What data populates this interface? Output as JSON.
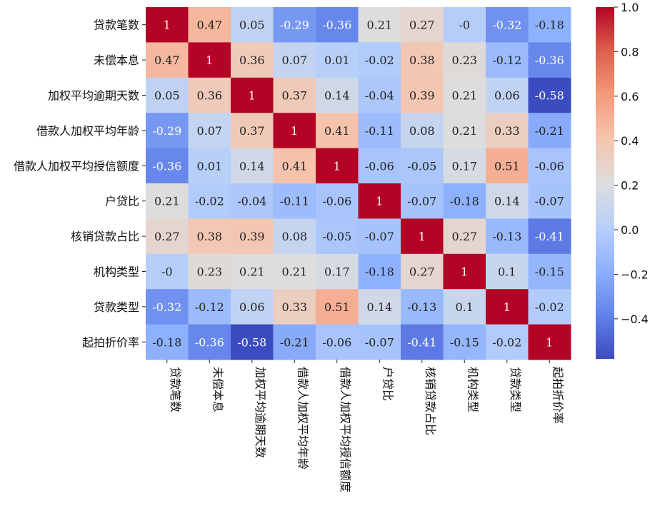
{
  "chart_data": {
    "type": "heatmap",
    "title": "",
    "xlabel": "",
    "ylabel": "",
    "colormap": "coolwarm",
    "vmin": -0.58,
    "vmax": 1.0,
    "labels": [
      "贷款笔数",
      "未偿本息",
      "加权平均逾期天数",
      "借款人加权平均年龄",
      "借款人加权平均授信额度",
      "户贷比",
      "核销贷款占比",
      "机构类型",
      "贷款类型",
      "起拍折价率"
    ],
    "matrix": [
      [
        1,
        0.47,
        0.05,
        -0.29,
        -0.36,
        0.21,
        0.27,
        0,
        -0.32,
        -0.18
      ],
      [
        0.47,
        1,
        0.36,
        0.07,
        0.01,
        -0.02,
        0.38,
        0.23,
        -0.12,
        -0.36
      ],
      [
        0.05,
        0.36,
        1,
        0.37,
        0.14,
        -0.04,
        0.39,
        0.21,
        0.06,
        -0.58
      ],
      [
        -0.29,
        0.07,
        0.37,
        1,
        0.41,
        -0.11,
        0.08,
        0.21,
        0.33,
        -0.21
      ],
      [
        -0.36,
        0.01,
        0.14,
        0.41,
        1,
        -0.06,
        -0.05,
        0.17,
        0.51,
        -0.06
      ],
      [
        0.21,
        -0.02,
        -0.04,
        -0.11,
        -0.06,
        1,
        -0.07,
        -0.18,
        0.14,
        -0.07
      ],
      [
        0.27,
        0.38,
        0.39,
        0.08,
        -0.05,
        -0.07,
        1,
        0.27,
        -0.13,
        -0.41
      ],
      [
        0,
        0.23,
        0.21,
        0.21,
        0.17,
        -0.18,
        0.27,
        1,
        0.1,
        -0.15
      ],
      [
        -0.32,
        -0.12,
        0.06,
        0.33,
        0.51,
        0.14,
        -0.13,
        0.1,
        1,
        -0.02
      ],
      [
        -0.18,
        -0.36,
        -0.58,
        -0.21,
        -0.06,
        -0.07,
        -0.41,
        -0.15,
        -0.02,
        1
      ]
    ],
    "cell_labels": [
      [
        "1",
        "0.47",
        "0.05",
        "-0.29",
        "-0.36",
        "0.21",
        "0.27",
        "-0",
        "-0.32",
        "-0.18"
      ],
      [
        "0.47",
        "1",
        "0.36",
        "0.07",
        "0.01",
        "-0.02",
        "0.38",
        "0.23",
        "-0.12",
        "-0.36"
      ],
      [
        "0.05",
        "0.36",
        "1",
        "0.37",
        "0.14",
        "-0.04",
        "0.39",
        "0.21",
        "0.06",
        "-0.58"
      ],
      [
        "-0.29",
        "0.07",
        "0.37",
        "1",
        "0.41",
        "-0.11",
        "0.08",
        "0.21",
        "0.33",
        "-0.21"
      ],
      [
        "-0.36",
        "0.01",
        "0.14",
        "0.41",
        "1",
        "-0.06",
        "-0.05",
        "0.17",
        "0.51",
        "-0.06"
      ],
      [
        "0.21",
        "-0.02",
        "-0.04",
        "-0.11",
        "-0.06",
        "1",
        "-0.07",
        "-0.18",
        "0.14",
        "-0.07"
      ],
      [
        "0.27",
        "0.38",
        "0.39",
        "0.08",
        "-0.05",
        "-0.07",
        "1",
        "0.27",
        "-0.13",
        "-0.41"
      ],
      [
        "-0",
        "0.23",
        "0.21",
        "0.21",
        "0.17",
        "-0.18",
        "0.27",
        "1",
        "0.1",
        "-0.15"
      ],
      [
        "-0.32",
        "-0.12",
        "0.06",
        "0.33",
        "0.51",
        "0.14",
        "-0.13",
        "0.1",
        "1",
        "-0.02"
      ],
      [
        "-0.18",
        "-0.36",
        "-0.58",
        "-0.21",
        "-0.06",
        "-0.07",
        "-0.41",
        "-0.15",
        "-0.02",
        "1"
      ]
    ],
    "colorbar": {
      "ticks": [
        1.0,
        0.8,
        0.6,
        0.4,
        0.2,
        0.0,
        -0.2,
        -0.4
      ],
      "tick_labels": [
        "1.0",
        "0.8",
        "0.6",
        "0.4",
        "0.2",
        "0.0",
        "−0.2",
        "−0.4"
      ]
    },
    "grid": false,
    "legend": "colorbar-right"
  }
}
